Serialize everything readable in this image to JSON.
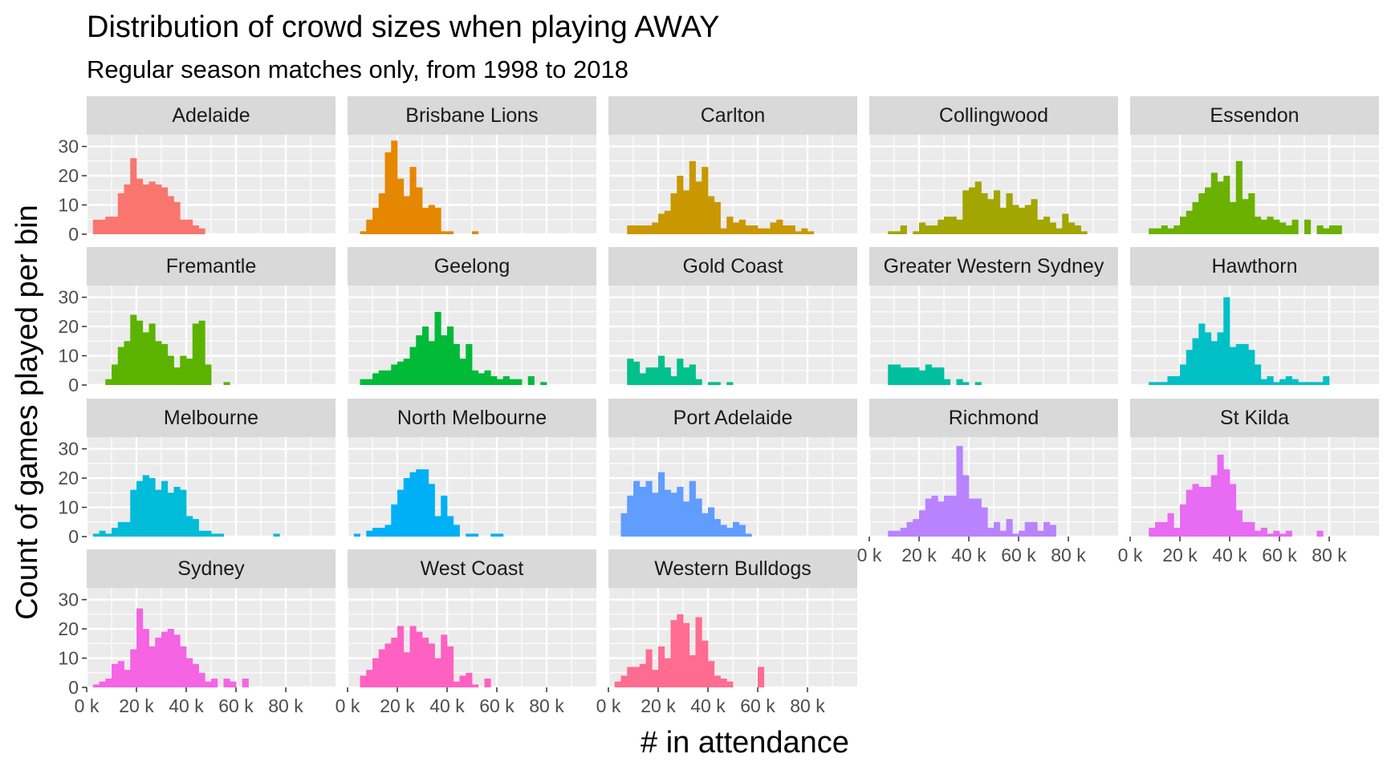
{
  "chart_data": {
    "type": "bar",
    "title": "Distribution of crowd sizes when playing AWAY",
    "subtitle": "Regular season matches only, from 1998 to 2018",
    "xlabel": "# in attendance",
    "ylabel": "Count of games played per bin",
    "xlim": [
      0,
      100000
    ],
    "ylim": [
      0,
      34
    ],
    "bin_width": 2500,
    "x_ticks": [
      0,
      20000,
      40000,
      60000,
      80000
    ],
    "x_tick_labels": [
      "0 k",
      "20 k",
      "40 k",
      "60 k",
      "80 k"
    ],
    "y_ticks": [
      0,
      10,
      20,
      30
    ],
    "y_tick_labels": [
      "0",
      "10",
      "20",
      "30"
    ],
    "grid": true,
    "legend": "none",
    "panels": [
      {
        "name": "Adelaide",
        "color": "#F8766D",
        "bin_start": 2500,
        "values": [
          5,
          5,
          6,
          6,
          14,
          17,
          26,
          19,
          17,
          18,
          17,
          16,
          13,
          11,
          5,
          5,
          3,
          2
        ]
      },
      {
        "name": "Brisbane Lions",
        "color": "#E58700",
        "bin_start": 5000,
        "values": [
          1,
          5,
          9,
          14,
          28,
          32,
          19,
          13,
          23,
          16,
          9,
          10,
          9,
          1,
          1,
          0,
          0,
          0,
          1
        ]
      },
      {
        "name": "Carlton",
        "color": "#C99800",
        "bin_start": 7500,
        "values": [
          3,
          3,
          3,
          3,
          4,
          7,
          8,
          14,
          20,
          15,
          25,
          18,
          23,
          13,
          11,
          2,
          6,
          4,
          5,
          3,
          3,
          2,
          2,
          4,
          5,
          3,
          3,
          1,
          2,
          1
        ]
      },
      {
        "name": "Collingwood",
        "color": "#A3A500",
        "bin_start": 7500,
        "values": [
          1,
          1,
          3,
          0,
          1,
          4,
          3,
          3,
          5,
          6,
          6,
          5,
          15,
          16,
          18,
          14,
          12,
          15,
          9,
          14,
          10,
          9,
          10,
          12,
          5,
          6,
          4,
          2,
          7,
          4,
          3,
          1
        ]
      },
      {
        "name": "Essendon",
        "color": "#6BB100",
        "bin_start": 7500,
        "values": [
          2,
          2,
          3,
          2,
          3,
          6,
          8,
          11,
          14,
          16,
          21,
          18,
          20,
          11,
          25,
          12,
          14,
          6,
          5,
          6,
          5,
          4,
          3,
          5,
          0,
          5,
          0,
          3,
          2,
          3,
          3
        ]
      },
      {
        "name": "Fremantle",
        "color": "#5BB300",
        "bin_start": 7500,
        "values": [
          2,
          7,
          13,
          15,
          24,
          22,
          18,
          21,
          15,
          14,
          10,
          6,
          10,
          9,
          21,
          22,
          7,
          0,
          0,
          1
        ]
      },
      {
        "name": "Geelong",
        "color": "#00BA38",
        "bin_start": 5000,
        "values": [
          2,
          2,
          4,
          5,
          5,
          7,
          8,
          9,
          13,
          17,
          20,
          15,
          25,
          17,
          20,
          14,
          9,
          14,
          5,
          4,
          5,
          3,
          2,
          3,
          2,
          2,
          0,
          3,
          0,
          1
        ]
      },
      {
        "name": "Gold Coast",
        "color": "#00C08B",
        "bin_start": 7500,
        "values": [
          9,
          8,
          4,
          6,
          6,
          10,
          6,
          3,
          9,
          6,
          7,
          2,
          0,
          1,
          1,
          0,
          1
        ]
      },
      {
        "name": "Greater Western Sydney",
        "color": "#00BFA0",
        "bin_start": 7500,
        "values": [
          7,
          7,
          6,
          6,
          6,
          5,
          7,
          6,
          6,
          2,
          0,
          2,
          1,
          0,
          1
        ]
      },
      {
        "name": "Hawthorn",
        "color": "#00C0C6",
        "bin_start": 7500,
        "values": [
          1,
          1,
          1,
          3,
          3,
          7,
          12,
          16,
          21,
          18,
          15,
          18,
          30,
          13,
          14,
          14,
          12,
          7,
          2,
          3,
          1,
          2,
          3,
          2,
          1,
          1,
          1,
          1,
          3
        ]
      },
      {
        "name": "Melbourne",
        "color": "#00BCD8",
        "bin_start": 2500,
        "values": [
          1,
          2,
          1,
          3,
          5,
          5,
          16,
          19,
          21,
          20,
          16,
          19,
          15,
          17,
          16,
          7,
          6,
          2,
          2,
          1,
          1,
          0,
          0,
          0,
          0,
          0,
          0,
          0,
          0,
          1
        ]
      },
      {
        "name": "North Melbourne",
        "color": "#00B0F6",
        "bin_start": 2500,
        "values": [
          1,
          0,
          2,
          3,
          3,
          4,
          11,
          16,
          20,
          22,
          23,
          23,
          18,
          7,
          14,
          7,
          4,
          0,
          1,
          1,
          0,
          0,
          1,
          1
        ]
      },
      {
        "name": "Port Adelaide",
        "color": "#619CFF",
        "bin_start": 5000,
        "values": [
          8,
          14,
          19,
          17,
          19,
          15,
          22,
          16,
          15,
          17,
          12,
          19,
          13,
          8,
          10,
          6,
          4,
          3,
          5,
          4,
          1
        ]
      },
      {
        "name": "Richmond",
        "color": "#B983FF",
        "bin_start": 7500,
        "values": [
          2,
          2,
          3,
          5,
          6,
          9,
          13,
          14,
          12,
          14,
          14,
          31,
          21,
          13,
          13,
          10,
          3,
          5,
          2,
          6,
          1,
          2,
          5,
          5,
          2,
          5,
          4
        ]
      },
      {
        "name": "St Kilda",
        "color": "#E76BF3",
        "bin_start": 7500,
        "values": [
          3,
          5,
          5,
          8,
          3,
          11,
          16,
          18,
          17,
          17,
          21,
          28,
          23,
          18,
          9,
          5,
          5,
          2,
          3,
          1,
          2,
          1,
          2,
          0,
          0,
          0,
          0,
          2
        ]
      },
      {
        "name": "Sydney",
        "color": "#F564E3",
        "bin_start": 2500,
        "values": [
          1,
          2,
          3,
          8,
          9,
          6,
          13,
          27,
          20,
          14,
          17,
          19,
          20,
          18,
          14,
          10,
          8,
          5,
          2,
          3,
          0,
          3,
          2,
          0,
          3
        ]
      },
      {
        "name": "West Coast",
        "color": "#FF61C3",
        "bin_start": 5000,
        "values": [
          4,
          6,
          10,
          13,
          15,
          17,
          21,
          12,
          21,
          19,
          17,
          15,
          10,
          18,
          14,
          2,
          4,
          5,
          1,
          0,
          3
        ]
      },
      {
        "name": "Western Bulldogs",
        "color": "#FF6C91",
        "bin_start": 2500,
        "values": [
          2,
          4,
          7,
          7,
          8,
          13,
          6,
          14,
          10,
          23,
          25,
          22,
          11,
          24,
          16,
          9,
          4,
          3,
          2,
          0,
          0,
          0,
          0,
          7
        ]
      }
    ]
  }
}
